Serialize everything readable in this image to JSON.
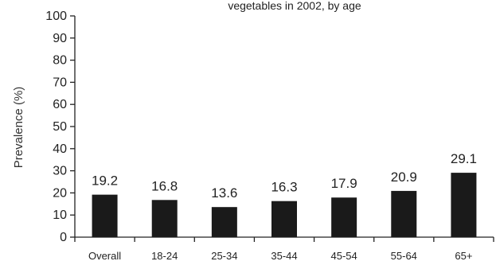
{
  "chart_data": {
    "type": "bar",
    "title": "vegetables in 2002, by age",
    "ylabel": "Prevalence (%)",
    "xlabel": "",
    "ylim": [
      0,
      100
    ],
    "yticks": [
      0,
      10,
      20,
      30,
      40,
      50,
      60,
      70,
      80,
      90,
      100
    ],
    "categories": [
      "Overall",
      "18-24",
      "25-34",
      "35-44",
      "45-54",
      "55-64",
      "65+"
    ],
    "values": [
      19.2,
      16.8,
      13.6,
      16.3,
      17.9,
      20.9,
      29.1
    ],
    "value_labels": [
      "19.2",
      "16.8",
      "13.6",
      "16.3",
      "17.9",
      "20.9",
      "29.1"
    ],
    "grid": false,
    "bar_color": "#1a1a1a"
  }
}
